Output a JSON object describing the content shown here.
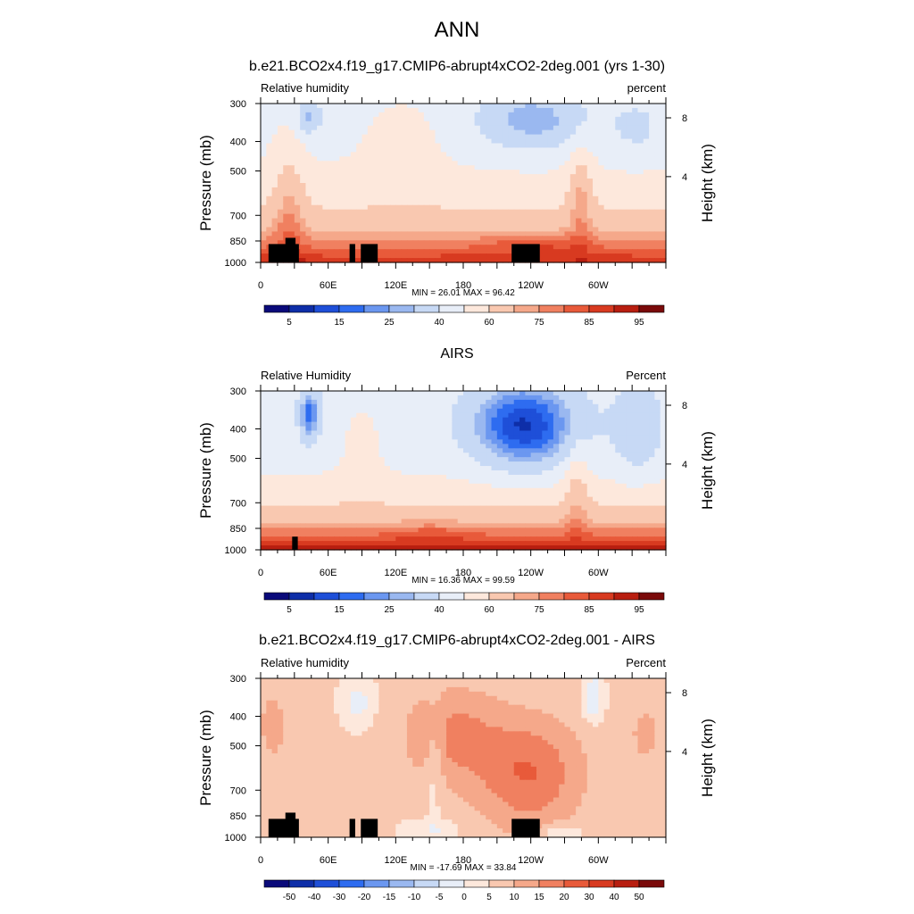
{
  "page_title": "ANN",
  "chart_data": [
    {
      "type": "heatmap",
      "title": "b.e21.BCO2x4.f19_g17.CMIP6-abrupt4xCO2-2deg.001 (yrs 1-30)",
      "variable_label": "Relative humidity",
      "units_label": "percent",
      "ylabel": "Pressure (mb)",
      "ylabel_right": "Height (km)",
      "x_ticks": [
        "0",
        "60E",
        "120E",
        "180",
        "120W",
        "60W"
      ],
      "y_ticks": [
        "300",
        "400",
        "500",
        "700",
        "850",
        "1000"
      ],
      "y2_ticks": [
        "8",
        "4"
      ],
      "stats": "MIN = 26.01  MAX = 96.42",
      "colorbar_labels": [
        "5",
        "15",
        "25",
        "40",
        "60",
        "75",
        "85",
        "95"
      ],
      "colorbar_colors": [
        "#0a0a7a",
        "#0e2ea8",
        "#1e4fd8",
        "#2e6cf0",
        "#6b97f0",
        "#9ab8f0",
        "#c7d9f5",
        "#e8eef8",
        "#fde8dc",
        "#f9c8b0",
        "#f5a88a",
        "#f08060",
        "#e85a3a",
        "#d83a20",
        "#b81e10",
        "#7a0a0a"
      ],
      "values_note": "relative humidity percent",
      "mask": "land-blocks",
      "pattern": "model"
    },
    {
      "type": "heatmap",
      "title": "AIRS",
      "variable_label": "Relative Humidity",
      "units_label": "Percent",
      "ylabel": "Pressure (mb)",
      "ylabel_right": "Height (km)",
      "x_ticks": [
        "0",
        "60E",
        "120E",
        "180",
        "120W",
        "60W"
      ],
      "y_ticks": [
        "300",
        "400",
        "500",
        "700",
        "850",
        "1000"
      ],
      "y2_ticks": [
        "8",
        "4"
      ],
      "stats": "MIN = 16.36  MAX = 99.59",
      "colorbar_labels": [
        "5",
        "15",
        "25",
        "40",
        "60",
        "75",
        "85",
        "95"
      ],
      "colorbar_colors": [
        "#0a0a7a",
        "#0e2ea8",
        "#1e4fd8",
        "#2e6cf0",
        "#6b97f0",
        "#9ab8f0",
        "#c7d9f5",
        "#e8eef8",
        "#fde8dc",
        "#f9c8b0",
        "#f5a88a",
        "#f08060",
        "#e85a3a",
        "#d83a20",
        "#b81e10",
        "#7a0a0a"
      ],
      "pattern": "obs"
    },
    {
      "type": "heatmap",
      "title": "b.e21.BCO2x4.f19_g17.CMIP6-abrupt4xCO2-2deg.001 - AIRS",
      "variable_label": "Relative humidity",
      "units_label": "Percent",
      "ylabel": "Pressure (mb)",
      "ylabel_right": "Height (km)",
      "x_ticks": [
        "0",
        "60E",
        "120E",
        "180",
        "120W",
        "60W"
      ],
      "y_ticks": [
        "300",
        "400",
        "500",
        "700",
        "850",
        "1000"
      ],
      "y2_ticks": [
        "8",
        "4"
      ],
      "stats": "MIN = -17.69  MAX =  33.84",
      "colorbar_labels": [
        "-50",
        "-40",
        "-30",
        "-20",
        "-15",
        "-10",
        "-5",
        "0",
        "5",
        "10",
        "15",
        "20",
        "30",
        "40",
        "50"
      ],
      "colorbar_colors": [
        "#0a0a7a",
        "#0e2ea8",
        "#1e4fd8",
        "#2e6cf0",
        "#6b97f0",
        "#9ab8f0",
        "#c7d9f5",
        "#e8eef8",
        "#fde8dc",
        "#f9c8b0",
        "#f5a88a",
        "#f08060",
        "#e85a3a",
        "#d83a20",
        "#b81e10",
        "#7a0a0a"
      ],
      "pattern": "diff"
    }
  ]
}
